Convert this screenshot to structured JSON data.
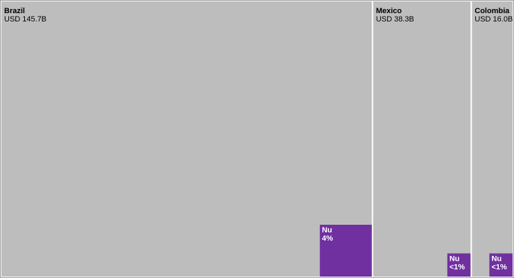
{
  "chart_data": {
    "type": "treemap",
    "categories": [
      "Brazil",
      "Mexico",
      "Colombia"
    ],
    "values": [
      145.7,
      38.3,
      16.0
    ],
    "value_labels": [
      "USD 145.7B",
      "USD 38.3B",
      "USD 16.0B"
    ],
    "color": "#bdbdbd",
    "series": [
      {
        "name": "Nu",
        "color": "#7030a0",
        "values": [
          4,
          0.8,
          0.8
        ],
        "value_labels": [
          "4%",
          "<1%",
          "<1%"
        ]
      }
    ]
  }
}
